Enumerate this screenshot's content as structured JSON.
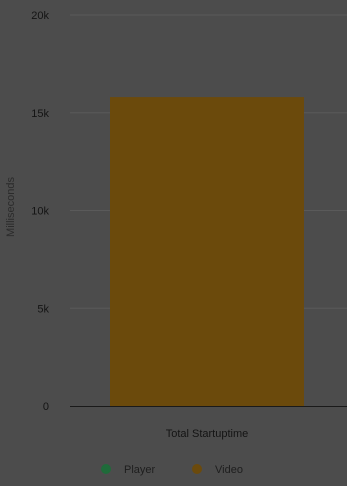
{
  "chart_data": {
    "type": "bar",
    "categories": [
      "Total Startuptime"
    ],
    "series": [
      {
        "name": "Player",
        "values": [
          0
        ],
        "color": "#1f6b3a"
      },
      {
        "name": "Video",
        "values": [
          15800
        ],
        "color": "#6b4a0c"
      }
    ],
    "ylabel": "Milliseconds",
    "xlabel": "",
    "ylim": [
      0,
      20000
    ],
    "yticks": [
      {
        "value": 0,
        "label": "0"
      },
      {
        "value": 5000,
        "label": "5k"
      },
      {
        "value": 10000,
        "label": "10k"
      },
      {
        "value": 15000,
        "label": "15k"
      },
      {
        "value": 20000,
        "label": "20k"
      }
    ],
    "grid": true,
    "legend_position": "bottom"
  }
}
